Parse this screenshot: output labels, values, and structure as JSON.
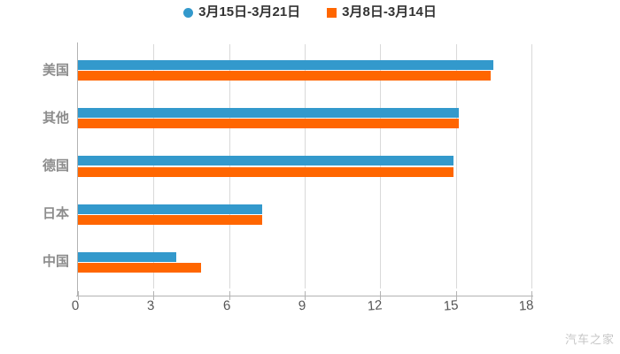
{
  "legend": {
    "items": [
      {
        "label": "3月15日-3月21日",
        "color": "#3399cc",
        "shape": "circle"
      },
      {
        "label": "3月8日-3月14日",
        "color": "#ff6600",
        "shape": "square"
      }
    ]
  },
  "watermark": "汽车之家",
  "chart_data": {
    "type": "bar",
    "orientation": "horizontal",
    "title": "",
    "xlabel": "",
    "ylabel": "",
    "categories": [
      "美国",
      "其他",
      "德国",
      "日本",
      "中国"
    ],
    "category_ids": [
      "usa",
      "others",
      "germany",
      "japan",
      "china"
    ],
    "series": [
      {
        "name": "3月15日-3月21日",
        "color": "#3399cc",
        "values": [
          16.5,
          15.1,
          14.9,
          7.3,
          3.9
        ]
      },
      {
        "name": "3月8日-3月14日",
        "color": "#ff6600",
        "values": [
          16.4,
          15.1,
          14.9,
          7.3,
          4.9
        ]
      }
    ],
    "xlim": [
      0,
      18
    ],
    "xticks": [
      0,
      3,
      6,
      9,
      12,
      15,
      18
    ],
    "grid": true,
    "legend_position": "top",
    "colors": {
      "grid": "#d9d9d9",
      "axis": "#b3b3b3",
      "tick_label": "#555555",
      "category_label": "#8c8c8c",
      "legend_text": "#333333",
      "background": "#ffffff"
    }
  }
}
